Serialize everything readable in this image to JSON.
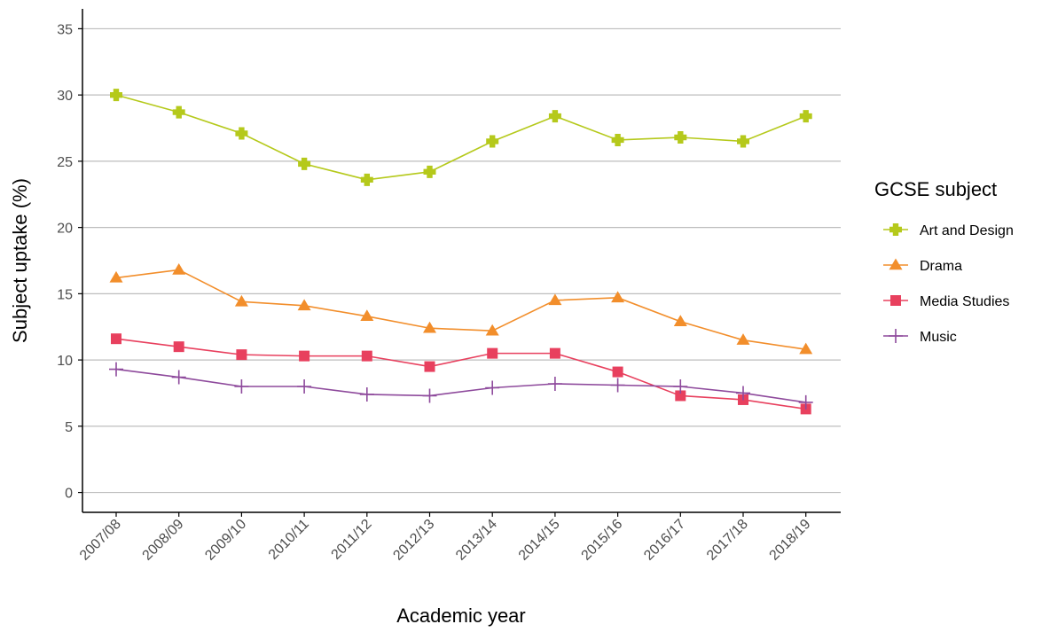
{
  "chart_data": {
    "type": "line",
    "title": "",
    "xlabel": "Academic year",
    "ylabel": "Subject uptake (%)",
    "categories": [
      "2007/08",
      "2008/09",
      "2009/10",
      "2010/11",
      "2011/12",
      "2012/13",
      "2013/14",
      "2014/15",
      "2015/16",
      "2016/17",
      "2017/18",
      "2018/19"
    ],
    "ylim": [
      -1.5,
      36.5
    ],
    "yticks": [
      0,
      5,
      10,
      15,
      20,
      25,
      30,
      35
    ],
    "grid": "horizontal",
    "legend": {
      "title": "GCSE subject",
      "placement": "right"
    },
    "series": [
      {
        "name": "Art and Design",
        "color": "#b5c91b",
        "marker": "cross-filled",
        "values": [
          30.0,
          28.7,
          27.1,
          24.8,
          23.6,
          24.2,
          26.5,
          28.4,
          26.6,
          26.8,
          26.5,
          28.4
        ]
      },
      {
        "name": "Drama",
        "color": "#f28e2b",
        "marker": "triangle",
        "values": [
          16.2,
          16.8,
          14.4,
          14.1,
          13.3,
          12.4,
          12.2,
          14.5,
          14.7,
          12.9,
          11.5,
          10.8
        ]
      },
      {
        "name": "Media Studies",
        "color": "#e8405e",
        "marker": "square",
        "values": [
          11.6,
          11.0,
          10.4,
          10.3,
          10.3,
          9.5,
          10.5,
          10.5,
          9.1,
          7.3,
          7.0,
          6.3
        ]
      },
      {
        "name": "Music",
        "color": "#8e4a9c",
        "marker": "plus",
        "values": [
          9.3,
          8.7,
          8.0,
          8.0,
          7.4,
          7.3,
          7.9,
          8.2,
          8.1,
          8.0,
          7.5,
          6.8
        ]
      }
    ]
  }
}
